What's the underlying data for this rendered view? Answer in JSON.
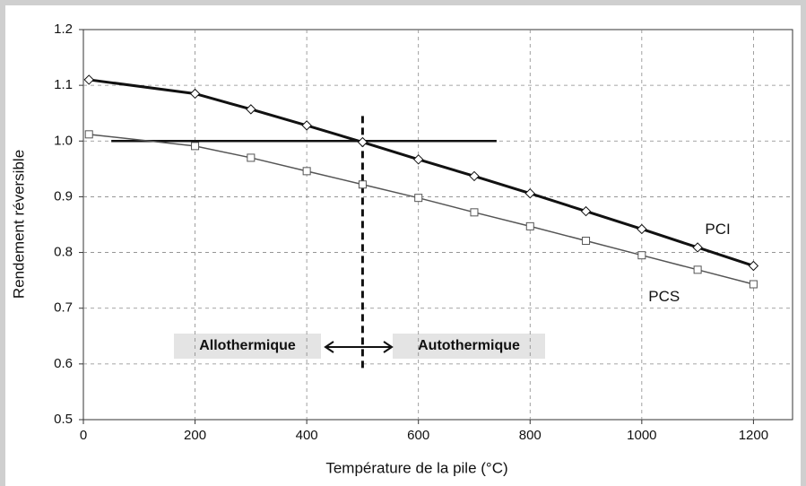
{
  "chart_data": {
    "type": "line",
    "xlabel": "Température de la pile (°C)",
    "ylabel": "Rendement réversible",
    "xlim": [
      0,
      1270
    ],
    "xticks": [
      0,
      200,
      400,
      600,
      800,
      1000,
      1200
    ],
    "ylim": [
      0.5,
      1.2
    ],
    "yticks": [
      0.5,
      0.6,
      0.7,
      0.8,
      0.9,
      {
        "value": 1,
        "label": "1.0"
      },
      1.1,
      1.2
    ],
    "grid": true,
    "series": [
      {
        "name": "PCI",
        "color": "#111111",
        "marker": "diamond",
        "x": [
          10,
          200,
          300,
          400,
          500,
          600,
          700,
          800,
          900,
          1000,
          1100,
          1200
        ],
        "values": [
          1.11,
          1.085,
          1.057,
          1.028,
          0.998,
          0.967,
          0.937,
          0.906,
          0.874,
          0.842,
          0.809,
          0.776
        ]
      },
      {
        "name": "PCS",
        "color": "#555555",
        "marker": "square",
        "x": [
          10,
          200,
          300,
          400,
          500,
          600,
          700,
          800,
          900,
          1000,
          1100,
          1200
        ],
        "values": [
          1.012,
          0.991,
          0.97,
          0.946,
          0.922,
          0.898,
          0.872,
          0.847,
          0.821,
          0.795,
          0.769,
          0.743
        ]
      }
    ],
    "reference_lines": [
      {
        "x": [
          50,
          740
        ],
        "values": [
          1,
          1
        ],
        "style": "solid"
      },
      {
        "x": [
          500,
          500
        ],
        "values": [
          1.045,
          0.59
        ],
        "style": "dashed"
      }
    ],
    "annotations": [
      "Allothermique",
      "Autothermique"
    ]
  }
}
